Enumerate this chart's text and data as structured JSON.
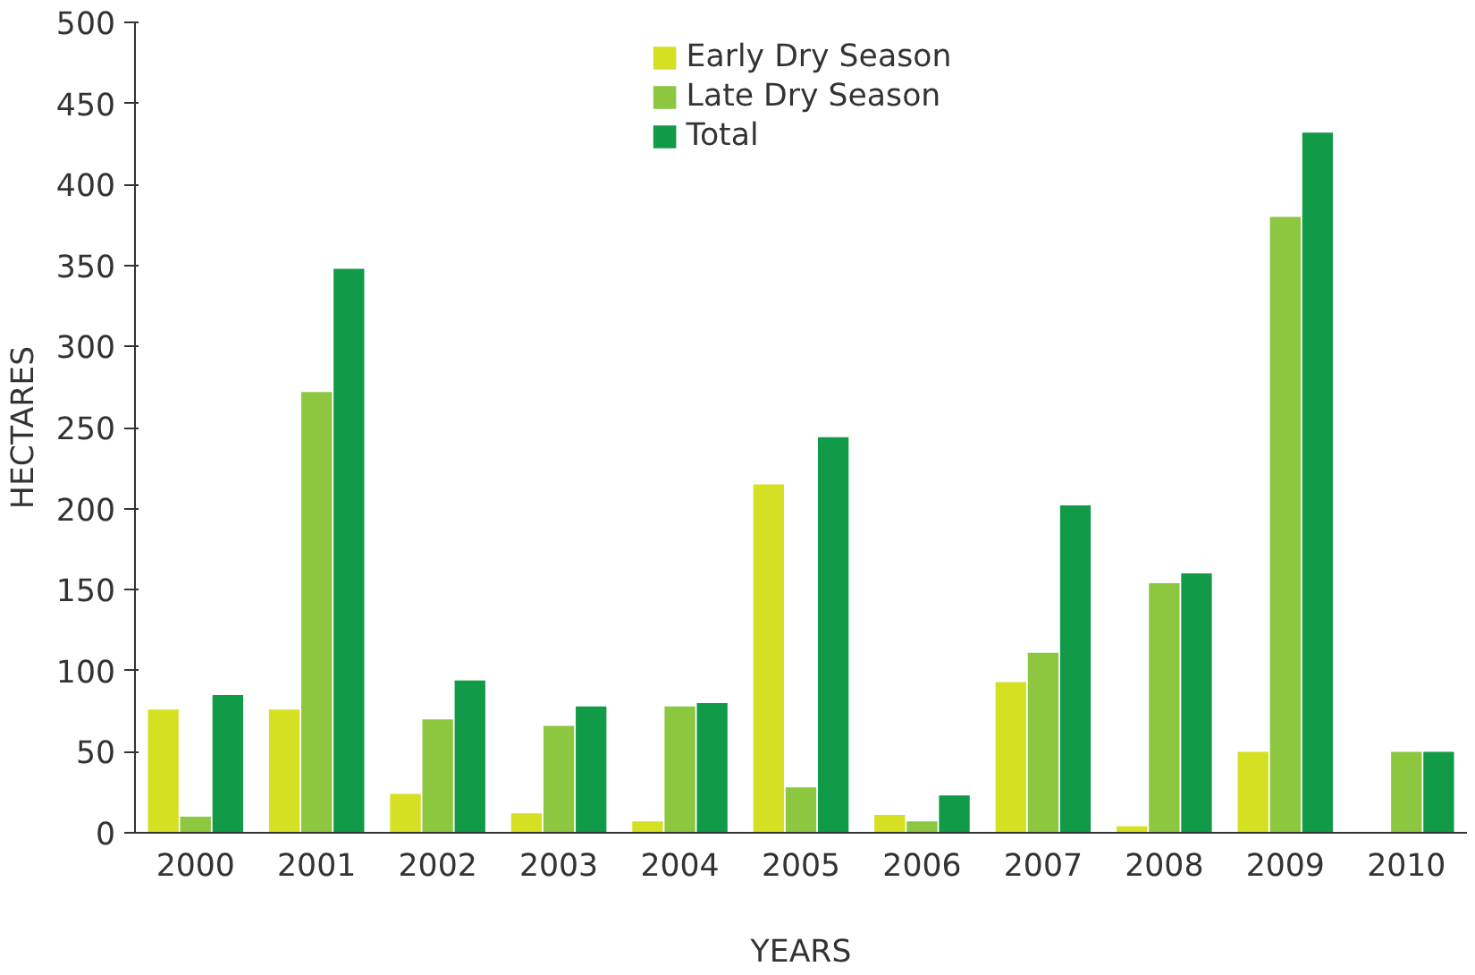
{
  "chart_data": {
    "type": "bar",
    "xlabel": "YEARS",
    "ylabel": "HECTARES",
    "categories": [
      "2000",
      "2001",
      "2002",
      "2003",
      "2004",
      "2005",
      "2006",
      "2007",
      "2008",
      "2009",
      "2010"
    ],
    "series": [
      {
        "name": "Early Dry Season",
        "color": "#d4e021",
        "values": [
          76,
          76,
          24,
          12,
          7,
          215,
          11,
          93,
          4,
          50,
          null
        ]
      },
      {
        "name": "Late Dry Season",
        "color": "#8dc63f",
        "values": [
          10,
          272,
          70,
          66,
          78,
          28,
          7,
          111,
          154,
          380,
          50
        ]
      },
      {
        "name": "Total",
        "color": "#119a48",
        "values": [
          85,
          348,
          94,
          78,
          80,
          244,
          23,
          202,
          160,
          432,
          50
        ]
      }
    ],
    "ylim": [
      0,
      500
    ],
    "yticks": [
      0,
      50,
      100,
      150,
      200,
      250,
      300,
      350,
      400,
      450,
      500
    ],
    "grid": false,
    "legend": "top"
  }
}
